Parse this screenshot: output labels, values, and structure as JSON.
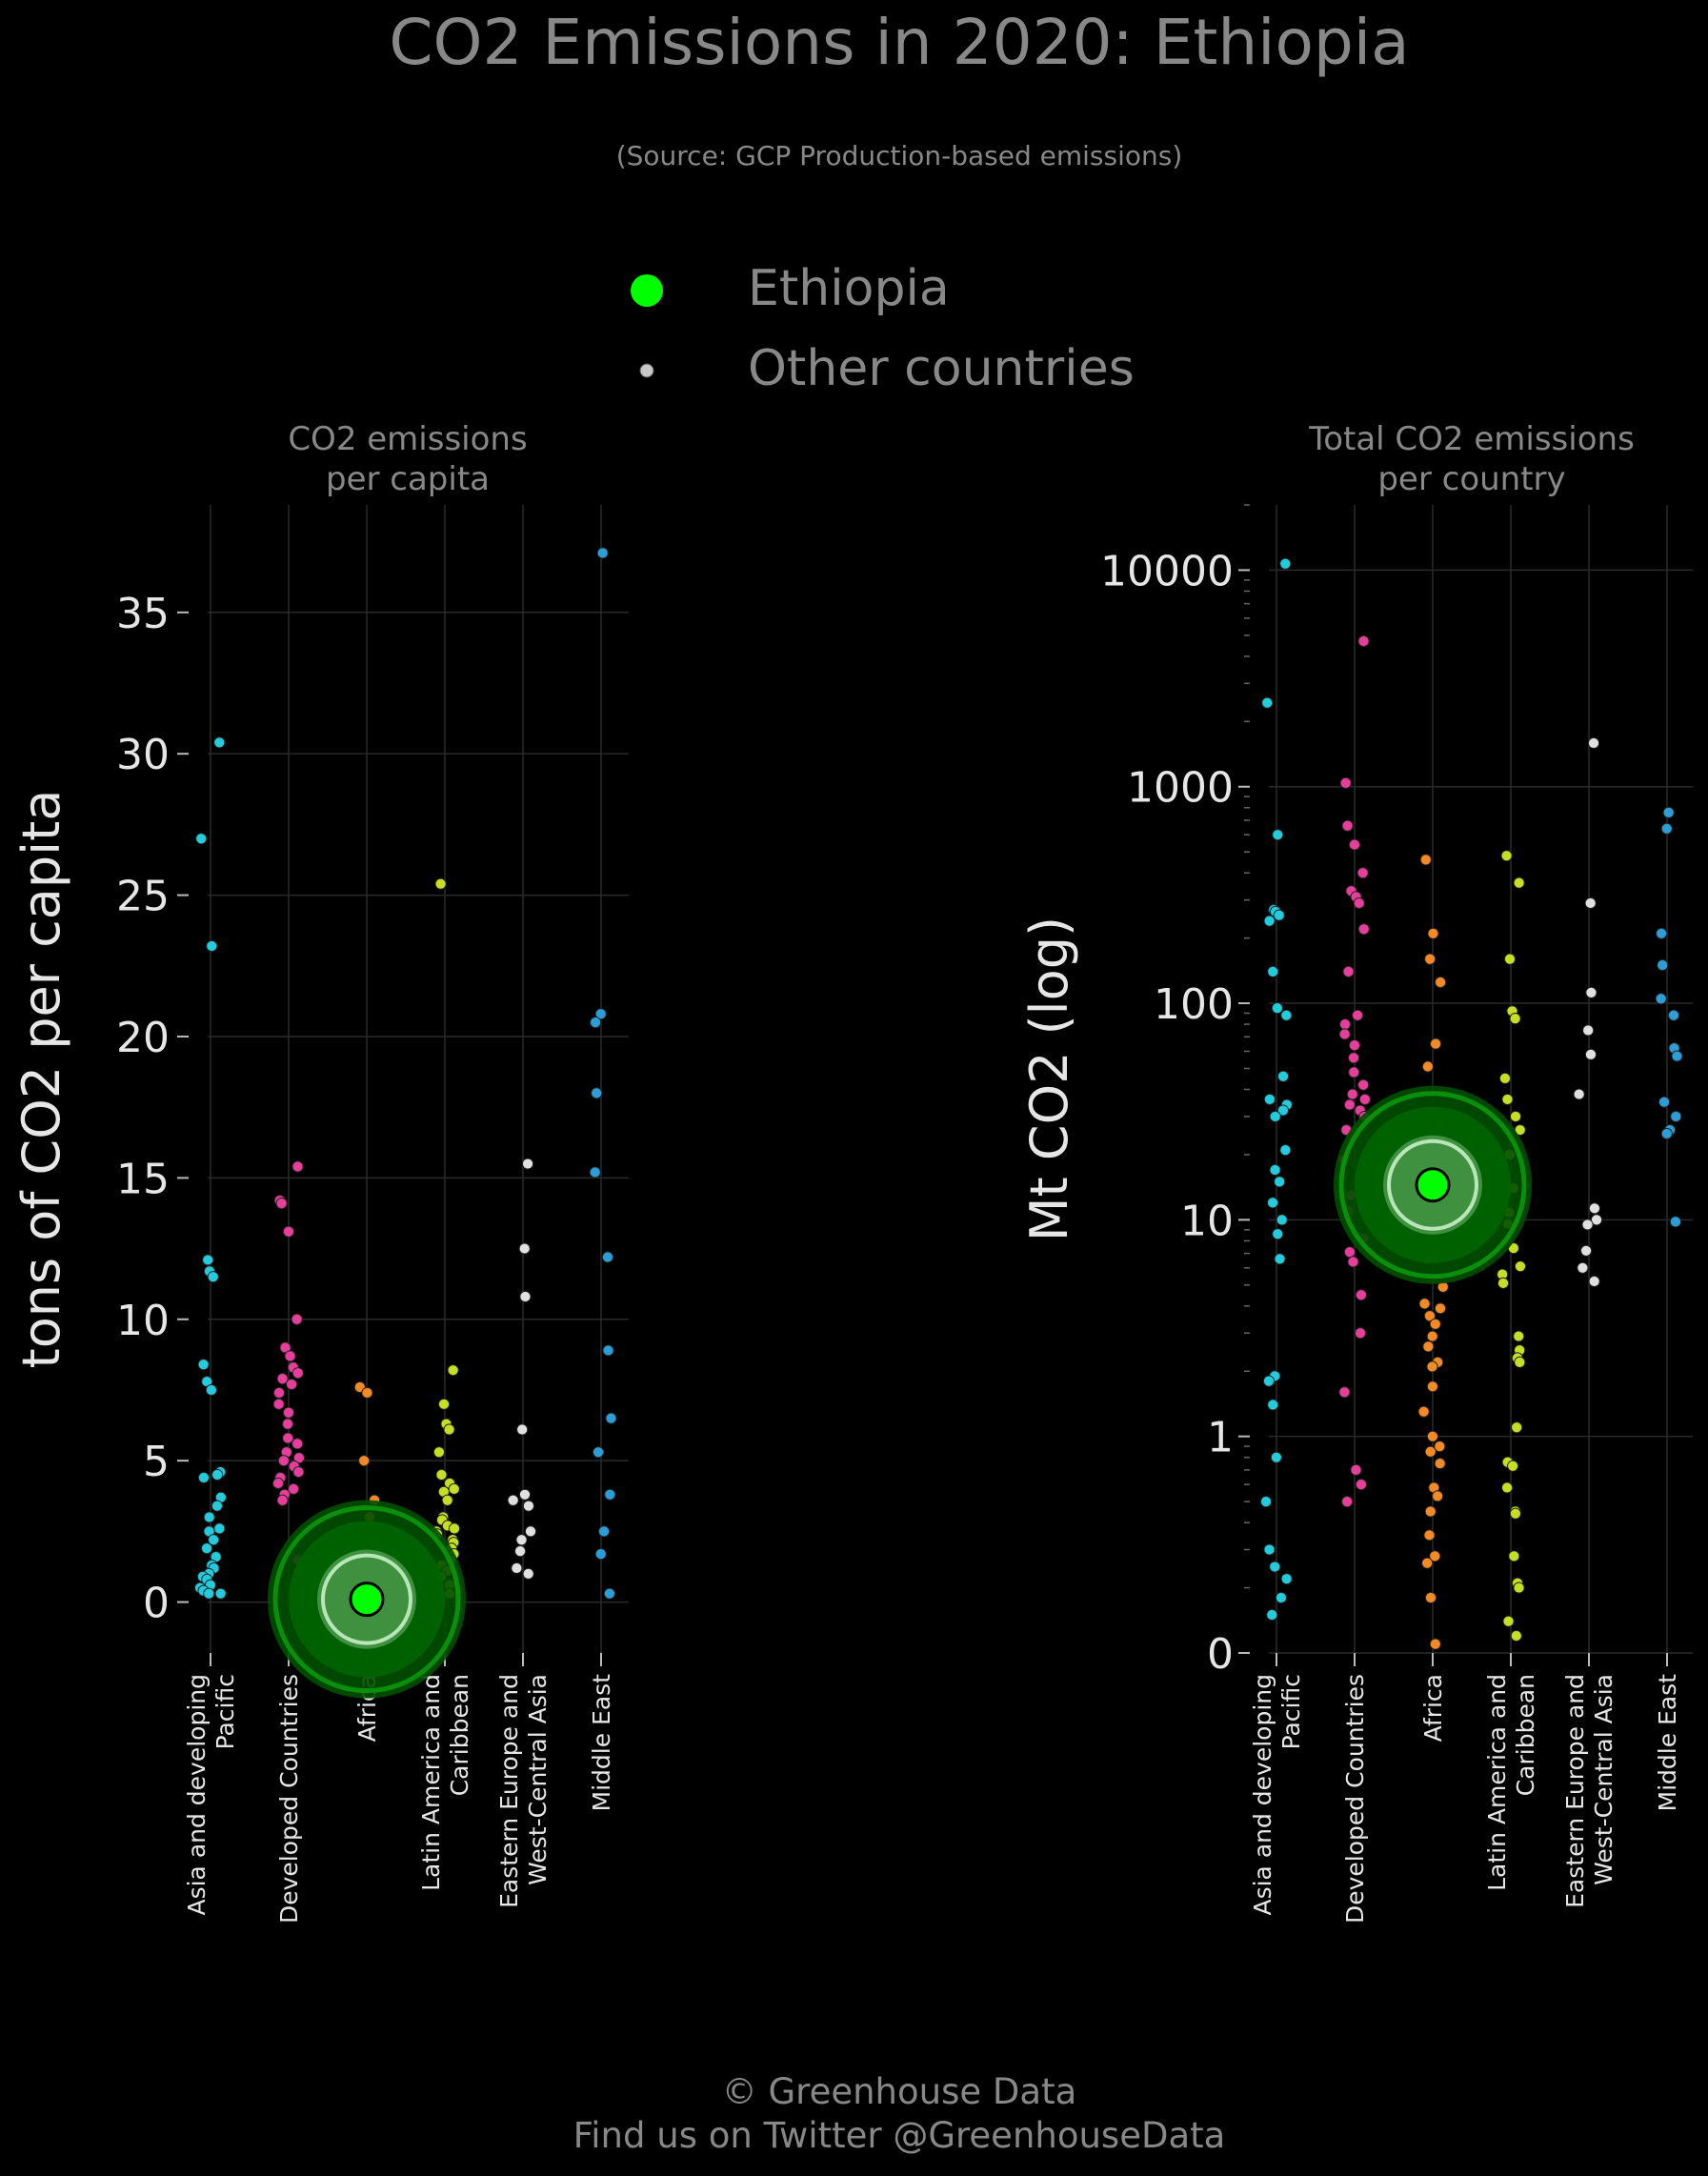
{
  "title": "CO2 Emissions in 2020: Ethiopia",
  "subtitle": "(Source: GCP Production-based emissions)",
  "legend": [
    {
      "label": "Ethiopia",
      "color": "#00ff00",
      "marker": "large-circle"
    },
    {
      "label": "Other countries",
      "color": "#c8c8c8",
      "marker": "small-circle"
    }
  ],
  "footer": {
    "line1": "© Greenhouse Data",
    "line2": "Find us on Twitter @GreenhouseData"
  },
  "colors": {
    "background": "#000000",
    "text_muted": "#888888",
    "text_axis": "#e6e6e6",
    "grid": "#2a2a2a",
    "highlight": "#00ff00",
    "highlight_ring": "#006400",
    "Asia and developing Pacific": "#22ccdd",
    "Developed Countries": "#e83e9b",
    "Africa": "#f58a24",
    "Latin America and Caribbean": "#c6df22",
    "Eastern Europe and West-Central Asia": "#e0e0e0",
    "Middle East": "#2b9ed8"
  },
  "chart_data": [
    {
      "type": "scatter",
      "panel": "left",
      "title": "CO2 emissions\nper capita",
      "ylabel": "tons of CO2 per capita",
      "xlabel": "",
      "ylim": [
        -1.8,
        38.8
      ],
      "yticks": [
        0,
        5,
        10,
        15,
        20,
        25,
        30,
        35
      ],
      "grid": true,
      "categories": [
        "Asia and developing\nPacific",
        "Developed Countries",
        "Africa",
        "Latin America and\nCaribbean",
        "Eastern Europe and\nWest-Central Asia",
        "Middle East"
      ],
      "highlight": {
        "name": "Ethiopia",
        "category": "Africa",
        "value": 0.1
      },
      "series": [
        {
          "category": "Asia and developing Pacific",
          "values": [
            30.4,
            27.0,
            23.2,
            12.1,
            11.7,
            11.5,
            8.4,
            7.8,
            7.5,
            4.6,
            4.5,
            4.4,
            3.7,
            3.4,
            3.0,
            2.6,
            2.5,
            2.2,
            1.9,
            1.6,
            1.3,
            1.2,
            1.0,
            0.9,
            0.8,
            0.6,
            0.5,
            0.4,
            0.3,
            0.3
          ]
        },
        {
          "category": "Developed Countries",
          "values": [
            15.4,
            14.2,
            14.1,
            13.1,
            10.0,
            9.0,
            8.7,
            8.3,
            8.1,
            7.9,
            7.7,
            7.4,
            7.0,
            6.7,
            6.3,
            5.8,
            5.6,
            5.3,
            5.1,
            5.0,
            4.8,
            4.6,
            4.4,
            4.2,
            4.0,
            3.8,
            3.6,
            1.5
          ]
        },
        {
          "category": "Africa",
          "values": [
            7.6,
            7.4,
            5.0,
            3.6,
            3.0,
            2.6,
            2.2,
            1.9,
            1.6,
            1.4,
            1.2,
            1.0,
            0.9,
            0.8,
            0.7,
            0.6,
            0.5,
            0.4,
            0.3,
            0.3,
            0.2,
            0.2,
            0.1,
            0.1,
            0.1,
            0.1
          ]
        },
        {
          "category": "Latin America and Caribbean",
          "values": [
            25.4,
            8.2,
            7.0,
            6.3,
            6.1,
            5.3,
            4.5,
            4.2,
            4.0,
            3.9,
            3.6,
            3.0,
            2.9,
            2.7,
            2.6,
            2.5,
            2.4,
            2.2,
            2.1,
            1.9,
            1.7,
            1.5,
            1.3,
            1.1,
            0.9,
            0.6,
            0.3
          ]
        },
        {
          "category": "Eastern Europe and West-Central Asia",
          "values": [
            15.5,
            12.5,
            10.8,
            6.1,
            3.8,
            3.6,
            3.4,
            2.5,
            2.2,
            1.8,
            1.2,
            1.0
          ]
        },
        {
          "category": "Middle East",
          "values": [
            37.1,
            20.8,
            20.5,
            18.0,
            15.2,
            12.2,
            8.9,
            6.5,
            5.3,
            3.8,
            2.5,
            1.7,
            0.3
          ]
        }
      ]
    },
    {
      "type": "scatter",
      "panel": "right",
      "title": "Total CO2 emissions\nper country",
      "ylabel": "Mt CO2 (log)",
      "xlabel": "",
      "yscale": "log",
      "ylim": [
        0.1,
        20000
      ],
      "ytick_values": [
        0.1,
        1,
        10,
        100,
        1000,
        10000
      ],
      "ytick_labels": [
        "0",
        "1",
        "10",
        "100",
        "1000",
        "10000"
      ],
      "grid": true,
      "categories": [
        "Asia and developing\nPacific",
        "Developed Countries",
        "Africa",
        "Latin America and\nCaribbean",
        "Eastern Europe and\nWest-Central Asia",
        "Middle East"
      ],
      "highlight": {
        "name": "Ethiopia",
        "category": "Africa",
        "value": 14.5
      },
      "series": [
        {
          "category": "Asia and developing Pacific",
          "values": [
            10700,
            2440,
            600,
            270,
            265,
            255,
            240,
            140,
            95,
            88,
            46,
            36,
            34,
            32,
            30,
            21,
            17,
            15,
            12,
            10,
            8.6,
            6.6,
            1.9,
            1.8,
            1.4,
            0.8,
            0.5,
            0.3,
            0.25,
            0.22,
            0.18,
            0.15
          ]
        },
        {
          "category": "Developed Countries",
          "values": [
            4700,
            1040,
            660,
            540,
            400,
            330,
            310,
            290,
            220,
            140,
            88,
            80,
            72,
            64,
            56,
            48,
            42,
            38,
            36,
            34,
            32,
            30,
            26,
            19,
            16,
            13,
            11,
            8.2,
            7.1,
            6.4,
            4.5,
            3.0,
            1.6,
            0.7,
            0.6,
            0.5
          ]
        },
        {
          "category": "Africa",
          "values": [
            460,
            210,
            160,
            125,
            65,
            51,
            28,
            22,
            15,
            12,
            11,
            10,
            9.8,
            6.8,
            6.6,
            4.9,
            4.1,
            3.9,
            3.6,
            3.3,
            2.9,
            2.6,
            2.2,
            2.1,
            1.7,
            1.3,
            1.0,
            0.9,
            0.85,
            0.75,
            0.58,
            0.53,
            0.45,
            0.35,
            0.28,
            0.26,
            0.18,
            0.11
          ]
        },
        {
          "category": "Latin America and Caribbean",
          "values": [
            480,
            360,
            160,
            92,
            85,
            45,
            36,
            30,
            26,
            20,
            14,
            10.8,
            9.6,
            7.4,
            6.1,
            5.6,
            5.1,
            2.9,
            2.5,
            2.3,
            2.2,
            1.1,
            0.76,
            0.73,
            0.58,
            0.45,
            0.44,
            0.28,
            0.21,
            0.2,
            0.14,
            0.12
          ]
        },
        {
          "category": "Eastern Europe and West-Central Asia",
          "values": [
            1590,
            290,
            112,
            75,
            58,
            38,
            11.3,
            10.0,
            9.5,
            7.2,
            6.0,
            5.2
          ]
        },
        {
          "category": "Middle East",
          "values": [
            760,
            640,
            210,
            150,
            105,
            88,
            62,
            57,
            35,
            30,
            26,
            25,
            9.8
          ]
        }
      ]
    }
  ]
}
